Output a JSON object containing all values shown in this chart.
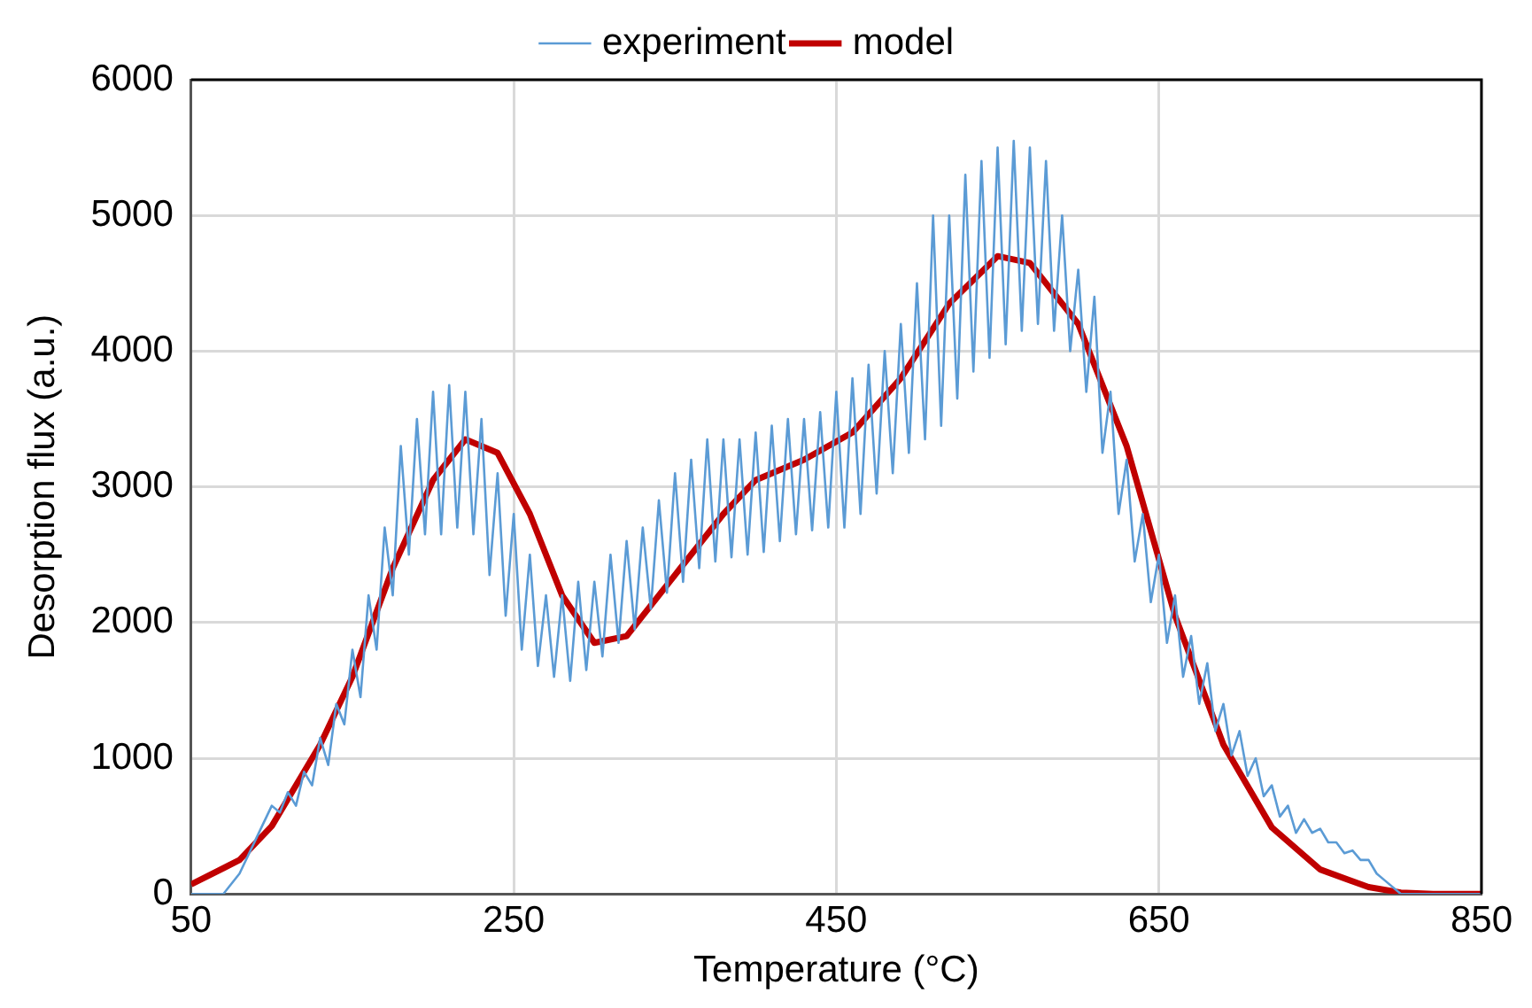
{
  "chart_data": {
    "type": "line",
    "xlabel": "Temperature (°C)",
    "ylabel": "Desorption flux (a.u.)",
    "xlim": [
      50,
      850
    ],
    "xticks": [
      50,
      250,
      450,
      650,
      850
    ],
    "ylim": [
      0,
      6000
    ],
    "yticks": [
      0,
      1000,
      2000,
      3000,
      4000,
      5000,
      6000
    ],
    "grid": true,
    "legend": "top",
    "marker": "none",
    "line_style": "solid",
    "series": [
      {
        "name": "experiment",
        "color": "#5b9bd5",
        "x": [
          50,
          60,
          70,
          80,
          90,
          100,
          105,
          110,
          115,
          120,
          125,
          130,
          135,
          140,
          145,
          150,
          155,
          160,
          165,
          170,
          175,
          180,
          185,
          190,
          195,
          200,
          205,
          210,
          215,
          220,
          225,
          230,
          235,
          240,
          245,
          250,
          255,
          260,
          265,
          270,
          275,
          280,
          285,
          290,
          295,
          300,
          305,
          310,
          315,
          320,
          325,
          330,
          335,
          340,
          345,
          350,
          355,
          360,
          365,
          370,
          375,
          380,
          385,
          390,
          395,
          400,
          405,
          410,
          415,
          420,
          425,
          430,
          435,
          440,
          445,
          450,
          455,
          460,
          465,
          470,
          475,
          480,
          485,
          490,
          495,
          500,
          505,
          510,
          515,
          520,
          525,
          530,
          535,
          540,
          545,
          550,
          555,
          560,
          565,
          570,
          575,
          580,
          585,
          590,
          595,
          600,
          605,
          610,
          615,
          620,
          625,
          630,
          635,
          640,
          645,
          650,
          655,
          660,
          665,
          670,
          675,
          680,
          685,
          690,
          695,
          700,
          705,
          710,
          715,
          720,
          725,
          730,
          735,
          740,
          745,
          750,
          755,
          760,
          765,
          770,
          775,
          780,
          785,
          790,
          800,
          850
        ],
        "values": [
          0,
          0,
          0,
          150,
          400,
          650,
          600,
          750,
          650,
          900,
          800,
          1150,
          950,
          1400,
          1250,
          1800,
          1450,
          2200,
          1800,
          2700,
          2200,
          3300,
          2500,
          3500,
          2650,
          3700,
          2650,
          3750,
          2700,
          3700,
          2650,
          3500,
          2350,
          3100,
          2050,
          2800,
          1800,
          2500,
          1680,
          2200,
          1600,
          2200,
          1570,
          2300,
          1650,
          2300,
          1750,
          2500,
          1850,
          2600,
          1950,
          2700,
          2100,
          2900,
          2220,
          3100,
          2300,
          3200,
          2400,
          3350,
          2450,
          3350,
          2480,
          3350,
          2500,
          3400,
          2520,
          3450,
          2600,
          3500,
          2650,
          3500,
          2680,
          3550,
          2700,
          3700,
          2700,
          3800,
          2800,
          3900,
          2950,
          4000,
          3100,
          4200,
          3250,
          4500,
          3350,
          5000,
          3450,
          5000,
          3650,
          5300,
          3850,
          5400,
          3950,
          5500,
          4050,
          5550,
          4150,
          5500,
          4200,
          5400,
          4150,
          5000,
          4000,
          4600,
          3700,
          4400,
          3250,
          3700,
          2800,
          3200,
          2450,
          2800,
          2150,
          2500,
          1850,
          2200,
          1600,
          1900,
          1400,
          1700,
          1200,
          1400,
          1020,
          1200,
          870,
          1000,
          720,
          800,
          570,
          650,
          450,
          550,
          450,
          480,
          380,
          380,
          300,
          320,
          250,
          250,
          150,
          100,
          0,
          0
        ]
      },
      {
        "name": "model",
        "color": "#c00000",
        "x": [
          50,
          80,
          100,
          130,
          150,
          175,
          200,
          220,
          240,
          260,
          280,
          300,
          320,
          350,
          380,
          400,
          430,
          460,
          490,
          520,
          550,
          570,
          600,
          630,
          660,
          690,
          720,
          750,
          780,
          800,
          820,
          850
        ],
        "values": [
          70,
          250,
          500,
          1100,
          1600,
          2400,
          3050,
          3350,
          3250,
          2800,
          2200,
          1850,
          1900,
          2350,
          2800,
          3050,
          3200,
          3400,
          3800,
          4350,
          4700,
          4650,
          4200,
          3300,
          2050,
          1100,
          490,
          180,
          50,
          10,
          0,
          0
        ]
      }
    ]
  }
}
